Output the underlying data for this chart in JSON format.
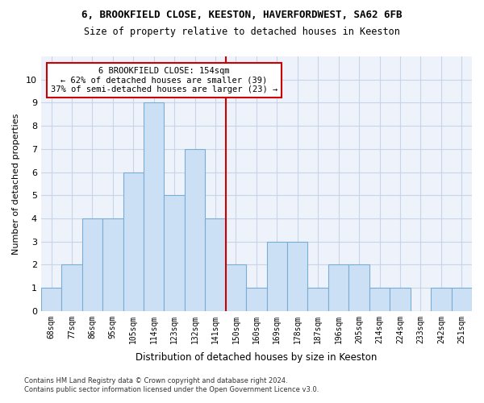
{
  "title_line1": "6, BROOKFIELD CLOSE, KEESTON, HAVERFORDWEST, SA62 6FB",
  "title_line2": "Size of property relative to detached houses in Keeston",
  "xlabel": "Distribution of detached houses by size in Keeston",
  "ylabel": "Number of detached properties",
  "footnote_line1": "Contains HM Land Registry data © Crown copyright and database right 2024.",
  "footnote_line2": "Contains public sector information licensed under the Open Government Licence v3.0.",
  "bar_labels": [
    "68sqm",
    "77sqm",
    "86sqm",
    "95sqm",
    "105sqm",
    "114sqm",
    "123sqm",
    "132sqm",
    "141sqm",
    "150sqm",
    "160sqm",
    "169sqm",
    "178sqm",
    "187sqm",
    "196sqm",
    "205sqm",
    "214sqm",
    "224sqm",
    "233sqm",
    "242sqm",
    "251sqm"
  ],
  "bar_heights": [
    1,
    2,
    4,
    4,
    6,
    9,
    5,
    7,
    4,
    2,
    1,
    3,
    3,
    1,
    2,
    2,
    1,
    1,
    0,
    1,
    1
  ],
  "bar_color": "#cce0f5",
  "bar_edge_color": "#7aadd4",
  "ylim_max": 11,
  "ref_line_color": "#cc0000",
  "annotation_line1": "6 BROOKFIELD CLOSE: 154sqm",
  "annotation_line2": "← 62% of detached houses are smaller (39)",
  "annotation_line3": "37% of semi-detached houses are larger (23) →",
  "grid_color": "#c8d4e8",
  "bg_color": "#eef2fa"
}
